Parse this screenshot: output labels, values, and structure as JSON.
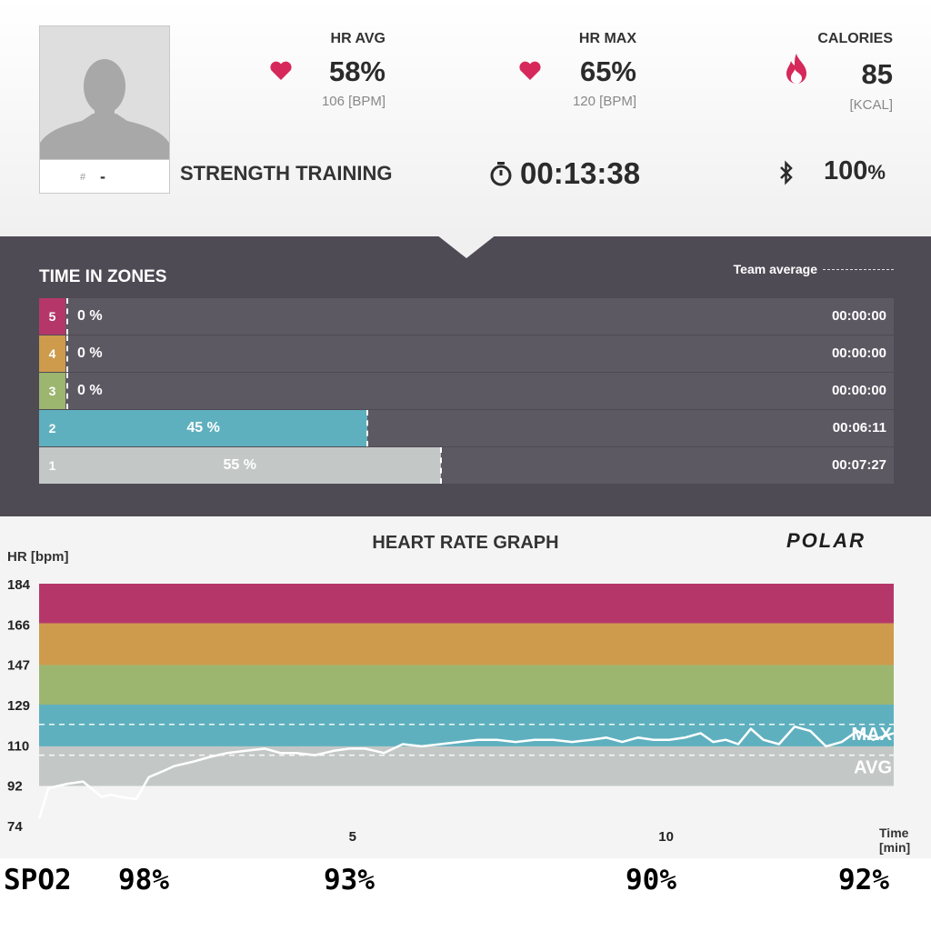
{
  "header": {
    "avatar_hash": "#",
    "avatar_number": "-",
    "hr_avg": {
      "label": "HR AVG",
      "value": "58%",
      "sub": "106 [BPM]"
    },
    "hr_max": {
      "label": "HR MAX",
      "value": "65%",
      "sub": "120 [BPM]"
    },
    "calories": {
      "label": "CALORIES",
      "value": "85",
      "sub": "[KCAL]"
    },
    "sport": "STRENGTH TRAINING",
    "duration": "00:13:38",
    "battery": "100",
    "battery_unit": "%"
  },
  "zones": {
    "title": "TIME IN ZONES",
    "team_average_label": "Team average",
    "rows": [
      {
        "zone": "5",
        "percent_label": "0 %",
        "percent": 0,
        "time": "00:00:00",
        "color": "#b5376a"
      },
      {
        "zone": "4",
        "percent_label": "0 %",
        "percent": 0,
        "time": "00:00:00",
        "color": "#cd9b4b"
      },
      {
        "zone": "3",
        "percent_label": "0 %",
        "percent": 0,
        "time": "00:00:00",
        "color": "#9cb56f"
      },
      {
        "zone": "2",
        "percent_label": "45 %",
        "percent": 45,
        "time": "00:06:11",
        "color": "#5fb0bf"
      },
      {
        "zone": "1",
        "percent_label": "55 %",
        "percent": 55,
        "time": "00:07:27",
        "color": "#c3c8c6"
      }
    ]
  },
  "chart_data": {
    "type": "line",
    "title": "HEART RATE GRAPH",
    "ylabel": "HR [bpm]",
    "xlabel_line1": "Time",
    "xlabel_line2": "[min]",
    "logo": "POLAR",
    "y_ticks": [
      "184",
      "166",
      "147",
      "129",
      "110",
      "92",
      "74"
    ],
    "x_ticks": [
      {
        "label": "5",
        "x": 5
      },
      {
        "label": "10",
        "x": 10
      }
    ],
    "xlim": [
      0,
      13.63
    ],
    "ylim": [
      74,
      184
    ],
    "zone_bands": [
      {
        "from": 166,
        "to": 184,
        "color": "#b5376a"
      },
      {
        "from": 147,
        "to": 166,
        "color": "#cd9b4b"
      },
      {
        "from": 129,
        "to": 147,
        "color": "#9cb56f"
      },
      {
        "from": 110,
        "to": 129,
        "color": "#5fb0bf"
      },
      {
        "from": 92,
        "to": 110,
        "color": "#c3c8c6"
      }
    ],
    "reference_lines": [
      {
        "name": "MAX",
        "value": 120
      },
      {
        "name": "AVG",
        "value": 106
      }
    ],
    "series": [
      {
        "color": "#ffffff",
        "x": [
          0,
          0.15,
          0.45,
          0.7,
          1.0,
          1.15,
          1.3,
          1.55,
          1.75,
          2.0,
          2.15,
          2.45,
          2.7,
          3.0,
          3.3,
          3.6,
          3.85,
          4.1,
          4.4,
          4.7,
          4.95,
          5.2,
          5.5,
          5.8,
          6.1,
          6.4,
          6.7,
          7.0,
          7.3,
          7.6,
          7.9,
          8.2,
          8.5,
          8.8,
          9.05,
          9.3,
          9.55,
          9.8,
          10.05,
          10.3,
          10.55,
          10.75,
          10.95,
          11.15,
          11.35,
          11.55,
          11.8,
          12.05,
          12.3,
          12.55,
          12.8,
          13.05,
          13.3,
          13.63
        ],
        "y": [
          77,
          91,
          93,
          94,
          87,
          88,
          87,
          86,
          96,
          99,
          101,
          103,
          105,
          107,
          108,
          109,
          107,
          107,
          106,
          108,
          109,
          109,
          107,
          111,
          110,
          111,
          112,
          113,
          113,
          112,
          113,
          113,
          112,
          113,
          114,
          112,
          114,
          113,
          113,
          114,
          116,
          112,
          113,
          111,
          118,
          113,
          111,
          119,
          117,
          110,
          112,
          117,
          113,
          116
        ]
      }
    ]
  },
  "spo2": {
    "label": "SPO2",
    "values": [
      "98%",
      "93%",
      "90%",
      "92%"
    ]
  },
  "colors": {
    "header_bg": "#f0f0f0",
    "zones_bg": "#4f4b55",
    "zone_track": "#5d5963",
    "heart": "#d6285a"
  }
}
